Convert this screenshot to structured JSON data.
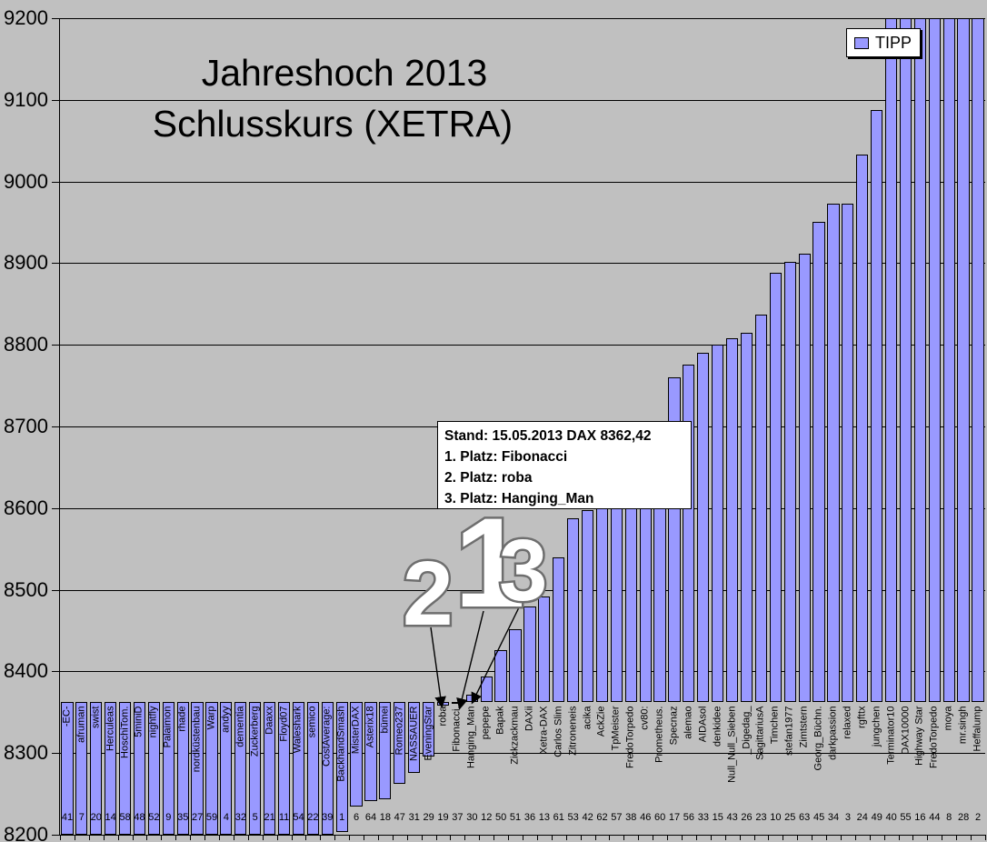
{
  "title": {
    "line1": "Jahreshoch 2013",
    "line2": "Schlusskurs (XETRA)"
  },
  "legend": {
    "label": "TIPP",
    "swatch_color": "#9999ff"
  },
  "annotation": {
    "stand_line": "Stand: 15.05.2013 DAX 8362,42",
    "platz1": "1. Platz: Fibonacci",
    "platz2": "2. Platz:  roba",
    "platz3": "3. Platz: Hanging_Man"
  },
  "callouts": {
    "first": "1",
    "second": "2",
    "third": "3"
  },
  "colors": {
    "background": "#c0c0c0",
    "bar_fill": "#9999ff",
    "bar_border": "#000000",
    "gridline": "#000000",
    "annotation_bg": "#ffffff"
  },
  "y_axis": {
    "min": 8200,
    "max": 9200,
    "step": 100,
    "tick_labels": [
      "9200",
      "9100",
      "9000",
      "8900",
      "8800",
      "8700",
      "8600",
      "8500",
      "8400",
      "8300",
      "8200"
    ]
  },
  "chart_data": {
    "type": "bar",
    "series_name": "TIPP",
    "grid": true,
    "legend_position": "top-right",
    "anchor_value": 8362.42,
    "note": "bars span from current DAX level 8362,42 to each participant tip; values null = below 8200 (clipped low), \">9200\" = clipped at top",
    "categories": [
      "-EC-",
      "afruman",
      "swist",
      "Herculeas",
      "HoschiTom.",
      "5miniD",
      "nightfly",
      "Palaimon",
      "rhade",
      "nordküstenbau",
      "Warp",
      "andyy",
      "dementia",
      "Zuckerberg",
      "Daaxx",
      "Floyd07",
      "Waleshark",
      "semico",
      "CostAverage:",
      "BackhandSmash",
      "MisterDAX",
      "Asterix18",
      "bümei",
      "Romeo237",
      "NASSAUER",
      "EveningStar",
      "roba",
      "Fibonacci.",
      "Hanging_Man",
      "pepepe",
      "Bapak",
      "Zickzackmau",
      "DAXii",
      "Xetra-DAX",
      "Carlos Slim",
      "Zitroneneis",
      "acika",
      "AckZie",
      "TpMeister",
      "FredoTorpedo",
      "cv80:",
      "Prometheus.",
      "Specnaz",
      "alemao",
      "AIDAsol",
      "denkidee",
      "Null_Null_Sieben",
      "_Digedag_",
      "SagittariusA",
      "Timchen",
      "stefan1977",
      "Zimtstern",
      "Georg_Büchn.",
      "darkpassion",
      "relaxed",
      "rgfttx",
      "jungchen",
      "Terminator10",
      "DAX10000",
      "Highway Star",
      "FredoTorpedo",
      "moya",
      "mr.singh",
      "Heffalump"
    ],
    "ids": [
      41,
      7,
      20,
      14,
      58,
      48,
      52,
      9,
      35,
      27,
      59,
      4,
      32,
      5,
      21,
      11,
      54,
      22,
      39,
      1,
      6,
      64,
      18,
      47,
      31,
      29,
      19,
      37,
      30,
      12,
      50,
      51,
      36,
      13,
      61,
      53,
      42,
      62,
      57,
      38,
      46,
      60,
      17,
      56,
      33,
      15,
      43,
      26,
      23,
      10,
      25,
      63,
      45,
      34,
      3,
      24,
      49,
      40,
      55,
      16,
      44,
      8,
      28,
      2
    ],
    "values": [
      null,
      null,
      null,
      null,
      null,
      null,
      null,
      null,
      null,
      null,
      null,
      null,
      null,
      null,
      null,
      null,
      null,
      null,
      null,
      8203,
      8235,
      8241,
      8243,
      8262,
      8276,
      8296,
      8358,
      8361,
      8372,
      8394,
      8426,
      8452,
      8480,
      8492,
      8540,
      8588,
      8597,
      8600,
      8600,
      8600,
      8602,
      8630,
      8760,
      8776,
      8790,
      8800,
      8808,
      8815,
      8837,
      8888,
      8902,
      8912,
      8951,
      8973,
      8973,
      9033,
      9088,
      ">9200",
      ">9200",
      ">9200",
      ">9200",
      ">9200",
      ">9200",
      ">9200"
    ]
  }
}
